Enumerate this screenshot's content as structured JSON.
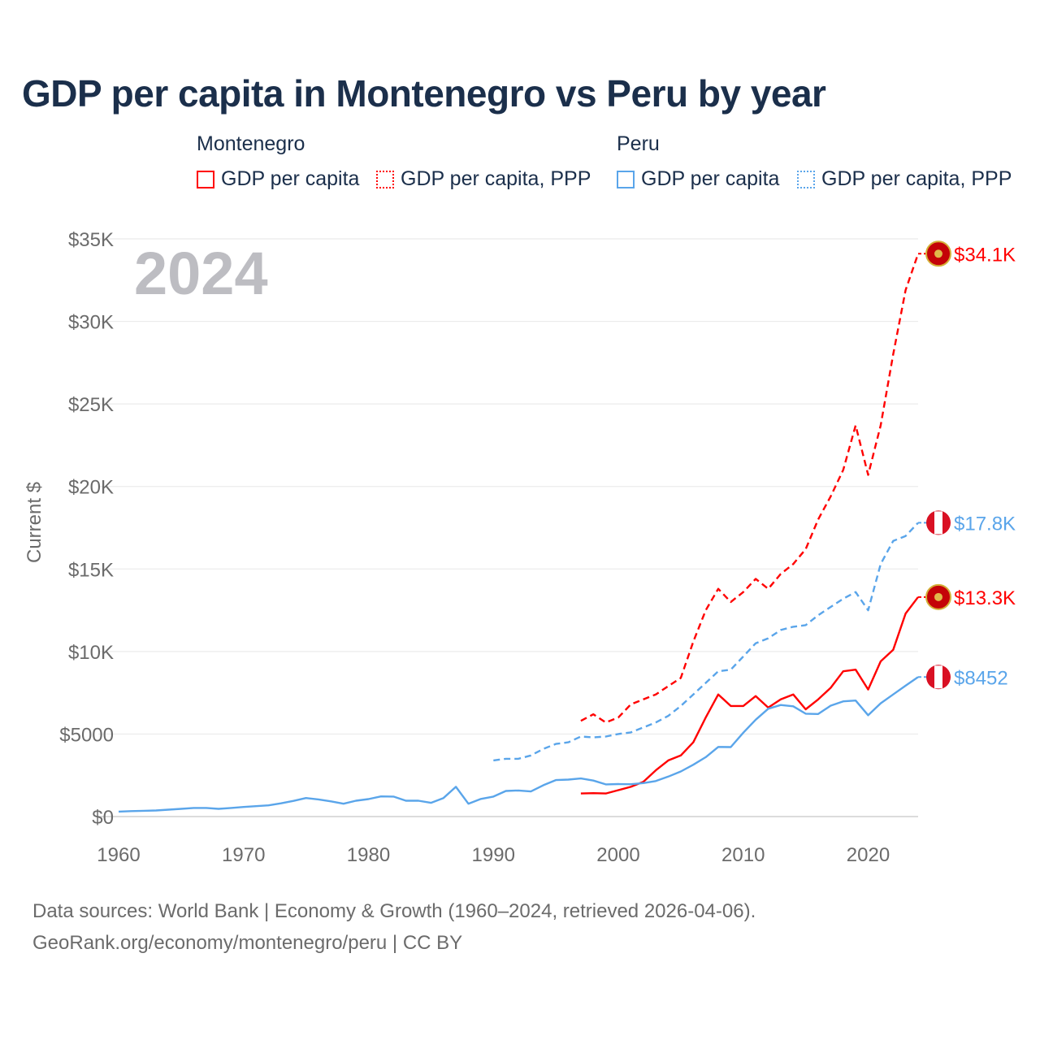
{
  "chart_data": {
    "type": "line",
    "title": "GDP per capita in Montenegro vs Peru by year",
    "xlabel": "",
    "ylabel": "Current $",
    "xlim": [
      1960,
      2024
    ],
    "ylim": [
      0,
      35000
    ],
    "x_ticks": [
      "1960",
      "1970",
      "1980",
      "1990",
      "2000",
      "2010",
      "2020"
    ],
    "x_tick_values": [
      1960,
      1970,
      1980,
      1990,
      2000,
      2010,
      2020
    ],
    "y_ticks": [
      "$0",
      "$5000",
      "$10K",
      "$15K",
      "$20K",
      "$25K",
      "$30K",
      "$35K"
    ],
    "y_tick_values": [
      0,
      5000,
      10000,
      15000,
      20000,
      25000,
      30000,
      35000
    ],
    "year_overlay": "2024",
    "grid": true,
    "legend_groups": [
      {
        "name": "Montenegro",
        "items": [
          "GDP per capita",
          "GDP per capita, PPP"
        ]
      },
      {
        "name": "Peru",
        "items": [
          "GDP per capita",
          "GDP per capita, PPP"
        ]
      }
    ],
    "series": [
      {
        "name": "Montenegro GDP per capita",
        "country": "Montenegro",
        "style": "solid",
        "color": "#ff0000",
        "start": 1997,
        "values": [
          1400,
          1420,
          1400,
          1600,
          1800,
          2100,
          2800,
          3400,
          3700,
          4500,
          6000,
          7400,
          6700,
          6700,
          7300,
          6600,
          7100,
          7400,
          6500,
          7100,
          7800,
          8800,
          8900,
          7700,
          9400,
          10100,
          12300,
          13300
        ],
        "end_label": "$13.3K"
      },
      {
        "name": "Montenegro GDP per capita, PPP",
        "country": "Montenegro",
        "style": "dashed",
        "color": "#ff0000",
        "start": 1997,
        "values": [
          5800,
          6200,
          5700,
          6000,
          6800,
          7100,
          7400,
          7900,
          8400,
          10600,
          12500,
          13800,
          13000,
          13600,
          14400,
          13800,
          14700,
          15300,
          16200,
          18000,
          19400,
          21000,
          23700,
          20700,
          23700,
          28000,
          31900,
          34100
        ],
        "end_label": "$34.1K"
      },
      {
        "name": "Peru GDP per capita",
        "country": "Peru",
        "style": "solid",
        "color": "#5aa5ea",
        "start": 1960,
        "values": [
          300,
          330,
          350,
          370,
          420,
          470,
          520,
          520,
          470,
          520,
          580,
          630,
          680,
          800,
          950,
          1120,
          1040,
          920,
          780,
          960,
          1060,
          1220,
          1210,
          960,
          960,
          830,
          1120,
          1800,
          780,
          1070,
          1210,
          1550,
          1580,
          1520,
          1900,
          2210,
          2240,
          2310,
          2180,
          1950,
          1970,
          1960,
          2030,
          2150,
          2420,
          2730,
          3140,
          3600,
          4220,
          4210,
          5080,
          5870,
          6530,
          6760,
          6680,
          6230,
          6210,
          6720,
          6980,
          7030,
          6140,
          6860,
          7400,
          7930,
          8452
        ],
        "end_label": "$8452"
      },
      {
        "name": "Peru GDP per capita, PPP",
        "country": "Peru",
        "style": "dashed",
        "color": "#5aa5ea",
        "start": 1990,
        "values": [
          3400,
          3500,
          3500,
          3700,
          4100,
          4400,
          4500,
          4850,
          4800,
          4850,
          5000,
          5100,
          5400,
          5700,
          6100,
          6700,
          7400,
          8100,
          8800,
          8900,
          9700,
          10500,
          10800,
          11300,
          11500,
          11600,
          12200,
          12700,
          13200,
          13600,
          12500,
          15300,
          16700,
          17000,
          17800
        ],
        "end_label": "$17.8K"
      }
    ]
  },
  "footer": {
    "line1": "Data sources: World Bank | Economy & Growth (1960–2024, retrieved 2026-04-06).",
    "line2": "GeoRank.org/economy/montenegro/peru | CC BY"
  }
}
